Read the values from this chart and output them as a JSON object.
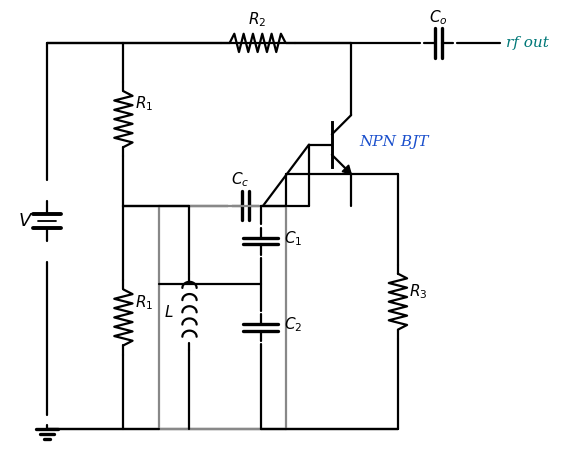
{
  "background": "#ffffff",
  "line_color": "#000000",
  "label_color_blue": "#1a4fcc",
  "label_color_teal": "#007878",
  "figsize": [
    5.62,
    4.62
  ],
  "dpi": 100,
  "lw": 1.6
}
